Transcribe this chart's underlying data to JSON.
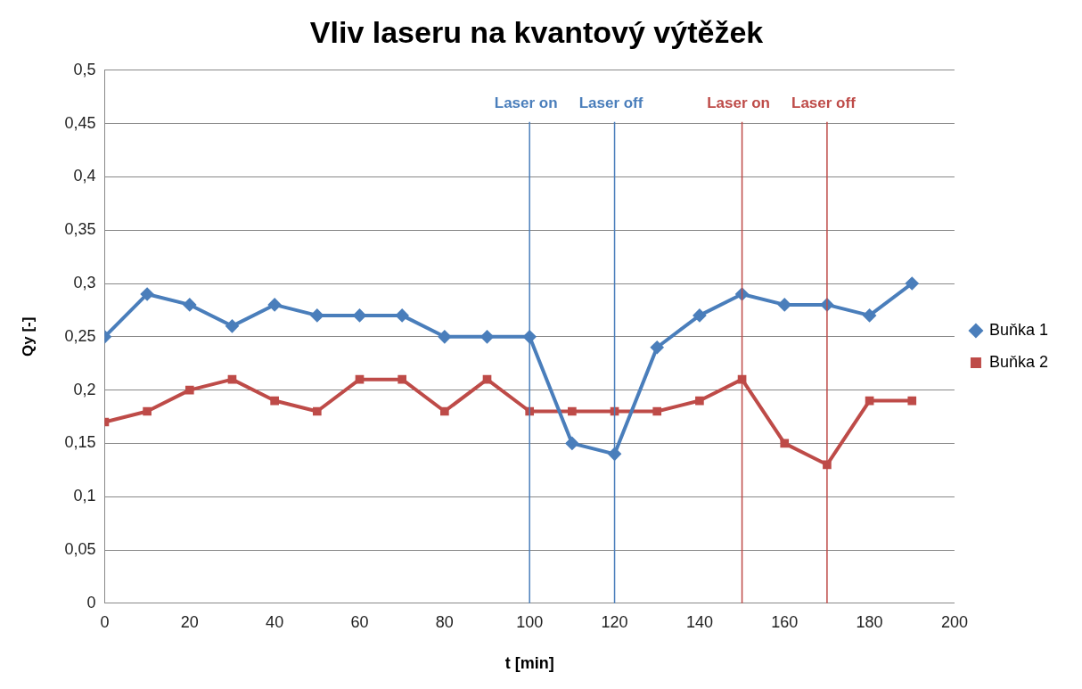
{
  "chart_data": {
    "type": "line",
    "title": "Vliv laseru na kvantový výtěžek",
    "xlabel": "t [min]",
    "ylabel": "Qy [-]",
    "x": [
      0,
      10,
      20,
      30,
      40,
      50,
      60,
      70,
      80,
      90,
      100,
      110,
      120,
      130,
      140,
      150,
      160,
      170,
      180,
      190
    ],
    "series": [
      {
        "name": "Buňka 1",
        "color": "#4a7ebb",
        "marker": "diamond",
        "values": [
          0.25,
          0.29,
          0.28,
          0.26,
          0.28,
          0.27,
          0.27,
          0.27,
          0.25,
          0.25,
          0.25,
          0.15,
          0.14,
          0.24,
          0.27,
          0.29,
          0.28,
          0.28,
          0.27,
          0.3
        ]
      },
      {
        "name": "Buňka 2",
        "color": "#be4b48",
        "marker": "square",
        "values": [
          0.17,
          0.18,
          0.2,
          0.21,
          0.19,
          0.18,
          0.21,
          0.21,
          0.18,
          0.21,
          0.18,
          0.18,
          0.18,
          0.18,
          0.19,
          0.21,
          0.15,
          0.13,
          0.19,
          0.19
        ]
      }
    ],
    "xlim": [
      0,
      200
    ],
    "xticks": [
      0,
      20,
      40,
      60,
      80,
      100,
      120,
      140,
      160,
      180,
      200
    ],
    "ylim": [
      0,
      0.5
    ],
    "yticks": [
      0,
      {
        "value": 0.05,
        "label": "0,05"
      },
      {
        "value": 0.1,
        "label": "0,1"
      },
      {
        "value": 0.15,
        "label": "0,15"
      },
      {
        "value": 0.2,
        "label": "0,2"
      },
      {
        "value": 0.25,
        "label": "0,25"
      },
      {
        "value": 0.3,
        "label": "0,3"
      },
      {
        "value": 0.35,
        "label": "0,35"
      },
      {
        "value": 0.4,
        "label": "0,4"
      },
      {
        "value": 0.45,
        "label": "0,45"
      },
      {
        "value": 0.5,
        "label": "0,5"
      }
    ],
    "ref_lines": [
      {
        "axis": "x",
        "value": 100,
        "label": "Laser on",
        "color": "#4a7ebb"
      },
      {
        "axis": "x",
        "value": 120,
        "label": "Laser off",
        "color": "#4a7ebb"
      },
      {
        "axis": "x",
        "value": 150,
        "label": "Laser on",
        "color": "#be4b48"
      },
      {
        "axis": "x",
        "value": 170,
        "label": "Laser off",
        "color": "#be4b48"
      }
    ],
    "grid": "y",
    "legend": "right",
    "line_style": "solid"
  }
}
